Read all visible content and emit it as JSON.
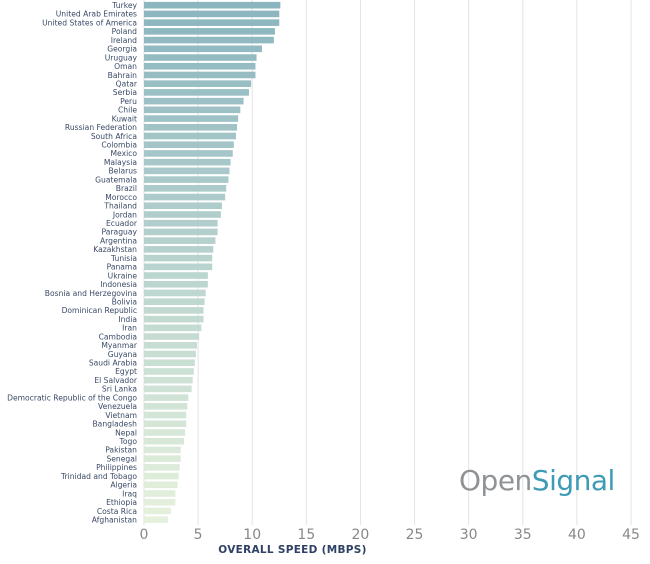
{
  "brand": {
    "open": "Open",
    "signal": "Signal",
    "signal_color": "#3e9bb5"
  },
  "chart_data": {
    "type": "bar",
    "orientation": "horizontal",
    "title": "",
    "xlabel": "OVERALL SPEED (MBPS)",
    "ylabel": "",
    "xlim": [
      0,
      45
    ],
    "xticks": [
      0,
      5,
      10,
      15,
      20,
      25,
      30,
      35,
      40,
      45
    ],
    "grid": true,
    "color_gradient": [
      "#8bb5bf",
      "#e6f1dd"
    ],
    "categories": [
      "Turkey",
      "United Arab Emirates",
      "United States of America",
      "Poland",
      "Ireland",
      "Georgia",
      "Uruguay",
      "Oman",
      "Bahrain",
      "Qatar",
      "Serbia",
      "Peru",
      "Chile",
      "Kuwait",
      "Russian Federation",
      "South Africa",
      "Colombia",
      "Mexico",
      "Malaysia",
      "Belarus",
      "Guatemala",
      "Brazil",
      "Morocco",
      "Thailand",
      "Jordan",
      "Ecuador",
      "Paraguay",
      "Argentina",
      "Kazakhstan",
      "Tunisia",
      "Panama",
      "Ukraine",
      "Indonesia",
      "Bosnia and Herzegovina",
      "Bolivia",
      "Dominican Republic",
      "India",
      "Iran",
      "Cambodia",
      "Myanmar",
      "Guyana",
      "Saudi Arabia",
      "Egypt",
      "El Salvador",
      "Sri Lanka",
      "Democratic Republic of the Congo",
      "Venezuela",
      "Vietnam",
      "Bangladesh",
      "Nepal",
      "Togo",
      "Pakistan",
      "Senegal",
      "Philippines",
      "Trinidad and Tobago",
      "Algeria",
      "Iraq",
      "Ethiopia",
      "Costa Rica",
      "Afghanistan"
    ],
    "values": [
      12.6,
      12.5,
      12.5,
      12.1,
      12.0,
      10.9,
      10.4,
      10.3,
      10.3,
      9.9,
      9.7,
      9.2,
      8.9,
      8.7,
      8.6,
      8.5,
      8.3,
      8.2,
      8.0,
      7.9,
      7.8,
      7.6,
      7.5,
      7.2,
      7.1,
      6.8,
      6.8,
      6.6,
      6.4,
      6.3,
      6.3,
      5.9,
      5.9,
      5.7,
      5.6,
      5.5,
      5.5,
      5.3,
      5.1,
      4.9,
      4.8,
      4.7,
      4.6,
      4.5,
      4.4,
      4.1,
      4.0,
      3.9,
      3.9,
      3.8,
      3.7,
      3.4,
      3.4,
      3.3,
      3.2,
      3.1,
      2.9,
      2.9,
      2.5,
      2.2
    ]
  }
}
